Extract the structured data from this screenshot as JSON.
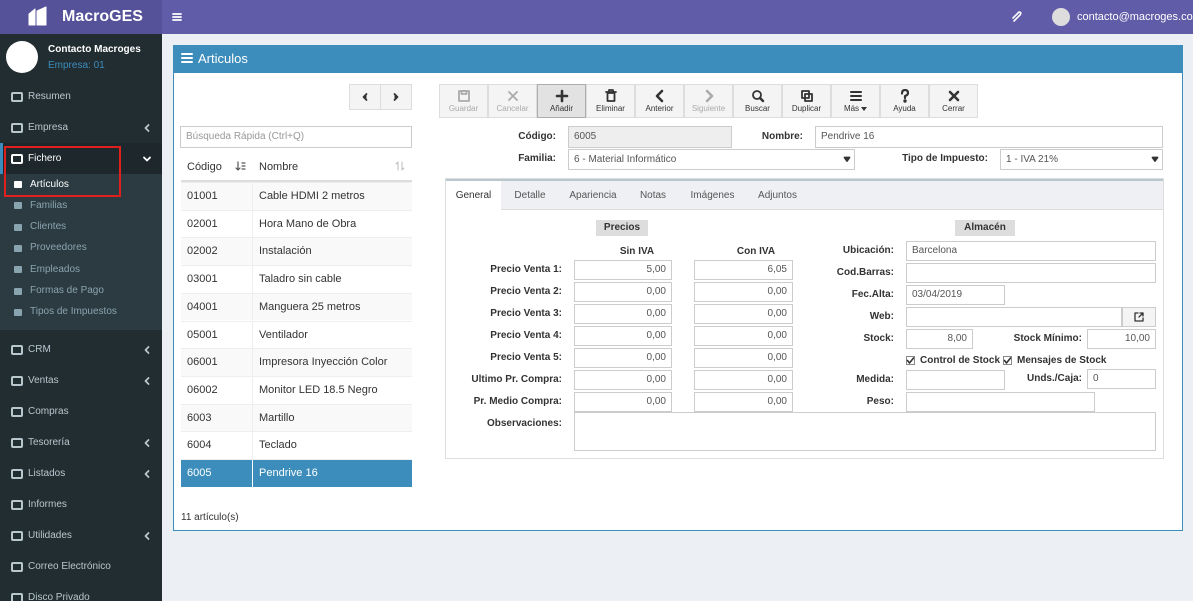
{
  "header": {
    "brand": "MacroGES",
    "user": "contacto@macroges.com"
  },
  "sidebar": {
    "user_name": "Contacto Macroges",
    "company": "Empresa: 01",
    "items": [
      {
        "label": "Resumen"
      },
      {
        "label": "Empresa",
        "submenu": true
      },
      {
        "label": "Fichero",
        "submenu": true,
        "open": true,
        "subitems": [
          "Artículos",
          "Familias",
          "Clientes",
          "Proveedores",
          "Empleados",
          "Formas de Pago",
          "Tipos de Impuestos"
        ],
        "active_subitem": 0
      },
      {
        "label": "CRM",
        "submenu": true
      },
      {
        "label": "Ventas",
        "submenu": true
      },
      {
        "label": "Compras"
      },
      {
        "label": "Tesorería",
        "submenu": true
      },
      {
        "label": "Listados",
        "submenu": true
      },
      {
        "label": "Informes"
      },
      {
        "label": "Utilidades",
        "submenu": true
      },
      {
        "label": "Correo Electrónico"
      },
      {
        "label": "Disco Privado"
      }
    ]
  },
  "panel": {
    "title": "Articulos"
  },
  "list": {
    "search_placeholder": "Búsqueda Rápida (Ctrl+Q)",
    "columns": [
      "Código",
      "Nombre"
    ],
    "rows": [
      [
        "01001",
        "Cable HDMI 2 metros"
      ],
      [
        "02001",
        "Hora Mano de Obra"
      ],
      [
        "02002",
        "Instalación"
      ],
      [
        "03001",
        "Taladro sin cable"
      ],
      [
        "04001",
        "Manguera 25 metros"
      ],
      [
        "05001",
        "Ventilador"
      ],
      [
        "06001",
        "Impresora Inyección Color"
      ],
      [
        "06002",
        "Monitor LED 18.5 Negro"
      ],
      [
        "6003",
        "Martillo"
      ],
      [
        "6004",
        "Teclado"
      ],
      [
        "6005",
        "Pendrive 16"
      ]
    ],
    "selected_row": 10,
    "footer": "11 artículo(s)"
  },
  "toolbar": [
    {
      "label": "Guardar",
      "icon": "save",
      "disabled": true
    },
    {
      "label": "Cancelar",
      "icon": "x",
      "disabled": true
    },
    {
      "label": "Añadir",
      "icon": "plus",
      "active": true
    },
    {
      "label": "Eliminar",
      "icon": "trash"
    },
    {
      "label": "Anterior",
      "icon": "left"
    },
    {
      "label": "Siguiente",
      "icon": "right",
      "disabled": true
    },
    {
      "label": "Buscar",
      "icon": "search"
    },
    {
      "label": "Duplicar",
      "icon": "copy"
    },
    {
      "label": "Más",
      "icon": "bars",
      "dropdown": true
    },
    {
      "label": "Ayuda",
      "icon": "help"
    },
    {
      "label": "Cerrar",
      "icon": "close"
    }
  ],
  "form": {
    "codigo": {
      "label": "Código:",
      "value": "6005"
    },
    "nombre": {
      "label": "Nombre:",
      "value": "Pendrive 16"
    },
    "familia": {
      "label": "Familia:",
      "value": "6 - Material Informático"
    },
    "impuesto": {
      "label": "Tipo de Impuesto:",
      "value": "1 - IVA 21%"
    }
  },
  "tabs": {
    "items": [
      "General",
      "Detalle",
      "Apariencia",
      "Notas",
      "Imágenes",
      "Adjuntos"
    ],
    "active": 0
  },
  "prices": {
    "title": "Precios",
    "columns": [
      "Sin IVA",
      "Con IVA"
    ],
    "rows": [
      {
        "label": "Precio Venta 1:",
        "values": [
          "5,00",
          "6,05"
        ]
      },
      {
        "label": "Precio Venta 2:",
        "values": [
          "0,00",
          "0,00"
        ]
      },
      {
        "label": "Precio Venta 3:",
        "values": [
          "0,00",
          "0,00"
        ]
      },
      {
        "label": "Precio Venta 4:",
        "values": [
          "0,00",
          "0,00"
        ]
      },
      {
        "label": "Precio Venta 5:",
        "values": [
          "0,00",
          "0,00"
        ]
      },
      {
        "label": "Ultimo Pr. Compra:",
        "values": [
          "0,00",
          "0,00"
        ]
      },
      {
        "label": "Pr. Medio Compra:",
        "values": [
          "0,00",
          "0,00"
        ]
      }
    ],
    "notes_label": "Observaciones:"
  },
  "store": {
    "title": "Almacén",
    "ubicacion": {
      "label": "Ubicación:",
      "value": "Barcelona"
    },
    "barras": {
      "label": "Cod.Barras:"
    },
    "alta": {
      "label": "Fec.Alta:",
      "value": "03/04/2019"
    },
    "web": {
      "label": "Web:"
    },
    "stock": {
      "label": "Stock:",
      "value": "8,00"
    },
    "stock_min": {
      "label": "Stock Mínimo:",
      "value": "10,00"
    },
    "control": {
      "label": "Control de Stock",
      "checked": true
    },
    "mensajes": {
      "label": "Mensajes de Stock",
      "checked": true
    },
    "medida": {
      "label": "Medida:"
    },
    "unds": {
      "label": "Unds./Caja:",
      "value": "0"
    },
    "peso": {
      "label": "Peso:"
    }
  }
}
